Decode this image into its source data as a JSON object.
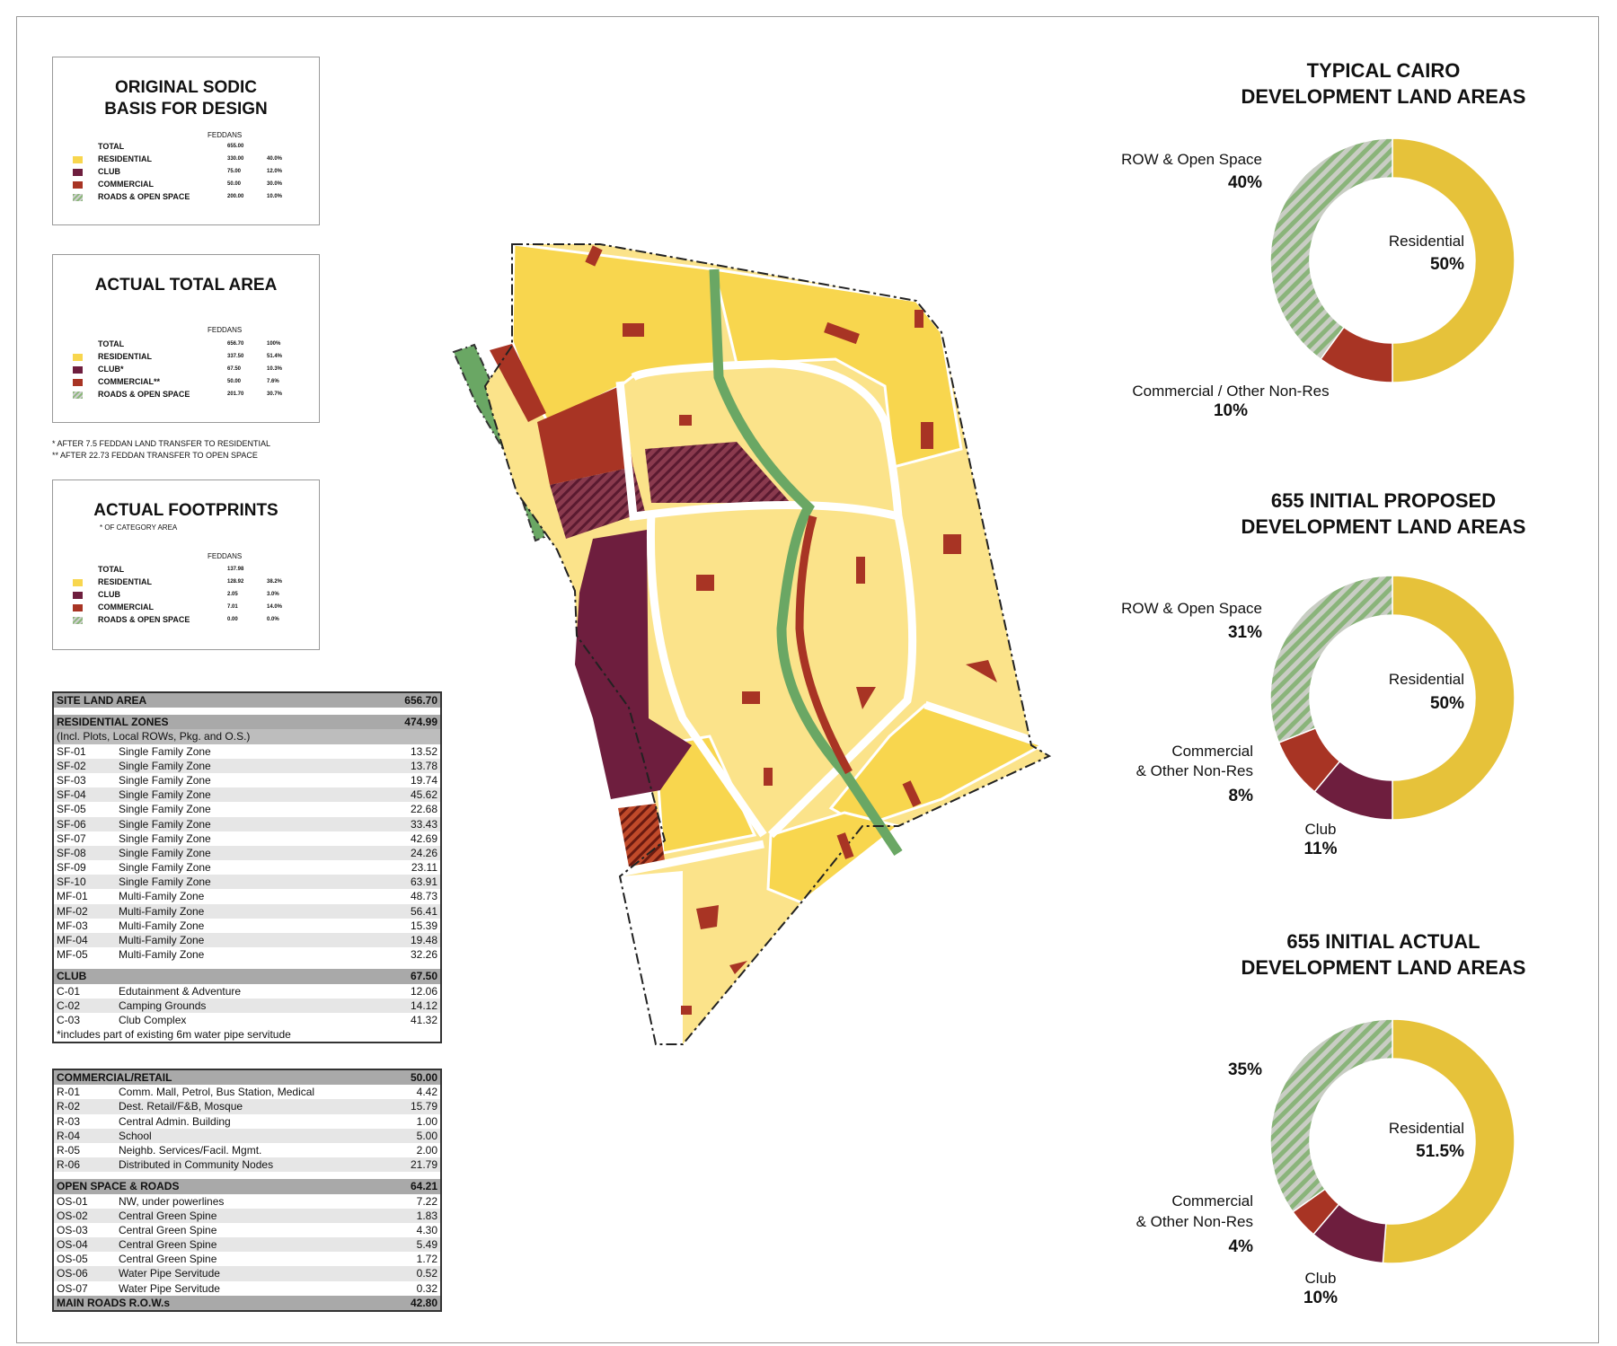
{
  "legend_boxes": {
    "original": {
      "title_line1": "ORIGINAL SODIC",
      "title_line2": "BASIS FOR DESIGN",
      "unit": "FEDDANS",
      "rows": [
        {
          "label": "TOTAL",
          "value": "655.00",
          "pct": ""
        },
        {
          "label": "RESIDENTIAL",
          "value": "330.00",
          "pct": "40.0%"
        },
        {
          "label": "CLUB",
          "value": "75.00",
          "pct": "12.0%"
        },
        {
          "label": "COMMERCIAL",
          "value": "50.00",
          "pct": "30.0%"
        },
        {
          "label": "ROADS & OPEN SPACE",
          "value": "200.00",
          "pct": "10.0%"
        }
      ]
    },
    "actual_total": {
      "title": "ACTUAL TOTAL AREA",
      "unit": "FEDDANS",
      "rows": [
        {
          "label": "TOTAL",
          "value": "656.70",
          "pct": "100%"
        },
        {
          "label": "RESIDENTIAL",
          "value": "337.50",
          "pct": "51.4%"
        },
        {
          "label": "CLUB*",
          "value": "67.50",
          "pct": "10.3%"
        },
        {
          "label": "COMMERCIAL**",
          "value": "50.00",
          "pct": "7.6%"
        },
        {
          "label": "ROADS & OPEN SPACE",
          "value": "201.70",
          "pct": "30.7%"
        }
      ],
      "note1": "* AFTER 7.5 FEDDAN LAND TRANSFER TO RESIDENTIAL",
      "note2": "** AFTER 22.73 FEDDAN TRANSFER TO OPEN SPACE"
    },
    "footprints": {
      "title": "ACTUAL FOOTPRINTS",
      "subtitle": "* OF CATEGORY AREA",
      "unit": "FEDDANS",
      "rows": [
        {
          "label": "TOTAL",
          "value": "137.98",
          "pct": ""
        },
        {
          "label": "RESIDENTIAL",
          "value": "128.92",
          "pct": "38.2%"
        },
        {
          "label": "CLUB",
          "value": "2.05",
          "pct": "3.0%"
        },
        {
          "label": "COMMERCIAL",
          "value": "7.01",
          "pct": "14.0%"
        },
        {
          "label": "ROADS & OPEN SPACE",
          "value": "0.00",
          "pct": "0.0%"
        }
      ]
    }
  },
  "colors": {
    "residential": "#f8d64e",
    "residential_light": "#fbe38a",
    "club": "#6e1e3e",
    "commercial": "#a83424",
    "green": "#6aa764",
    "donut_yellow": "#e6c23a",
    "donut_red": "#a83424",
    "donut_club": "#6e1e3e"
  },
  "table1": {
    "site": {
      "label": "SITE LAND AREA",
      "value": "656.70"
    },
    "res": {
      "label": "RESIDENTIAL ZONES",
      "value": "474.99",
      "note": "(Incl. Plots, Local ROWs, Pkg. and O.S.)"
    },
    "res_rows": [
      {
        "code": "SF-01",
        "name": "Single Family Zone",
        "value": "13.52"
      },
      {
        "code": "SF-02",
        "name": "Single Family Zone",
        "value": "13.78"
      },
      {
        "code": "SF-03",
        "name": "Single Family Zone",
        "value": "19.74"
      },
      {
        "code": "SF-04",
        "name": "Single Family Zone",
        "value": "45.62"
      },
      {
        "code": "SF-05",
        "name": "Single Family Zone",
        "value": "22.68"
      },
      {
        "code": "SF-06",
        "name": "Single Family Zone",
        "value": "33.43"
      },
      {
        "code": "SF-07",
        "name": "Single Family Zone",
        "value": "42.69"
      },
      {
        "code": "SF-08",
        "name": "Single Family Zone",
        "value": "24.26"
      },
      {
        "code": "SF-09",
        "name": "Single Family Zone",
        "value": "23.11"
      },
      {
        "code": "SF-10",
        "name": "Single Family Zone",
        "value": "63.91"
      },
      {
        "code": "MF-01",
        "name": "Multi-Family Zone",
        "value": "48.73"
      },
      {
        "code": "MF-02",
        "name": "Multi-Family Zone",
        "value": "56.41"
      },
      {
        "code": "MF-03",
        "name": "Multi-Family Zone",
        "value": "15.39"
      },
      {
        "code": "MF-04",
        "name": "Multi-Family Zone",
        "value": "19.48"
      },
      {
        "code": "MF-05",
        "name": "Multi-Family Zone",
        "value": "32.26"
      }
    ],
    "club": {
      "label": "CLUB",
      "value": "67.50"
    },
    "club_rows": [
      {
        "code": "C-01",
        "name": "Edutainment & Adventure",
        "value": "12.06"
      },
      {
        "code": "C-02",
        "name": "Camping Grounds",
        "value": "14.12"
      },
      {
        "code": "C-03",
        "name": "Club Complex",
        "value": "41.32"
      }
    ],
    "club_note": "*includes part of existing 6m water pipe servitude"
  },
  "table2": {
    "com": {
      "label": "COMMERCIAL/RETAIL",
      "value": "50.00"
    },
    "com_rows": [
      {
        "code": "R-01",
        "name": "Comm. Mall, Petrol, Bus Station, Medical",
        "value": "4.42"
      },
      {
        "code": "R-02",
        "name": "Dest. Retail/F&B, Mosque",
        "value": "15.79"
      },
      {
        "code": "R-03",
        "name": "Central Admin. Building",
        "value": "1.00"
      },
      {
        "code": "R-04",
        "name": "School",
        "value": "5.00"
      },
      {
        "code": "R-05",
        "name": "Neighb. Services/Facil. Mgmt.",
        "value": "2.00"
      },
      {
        "code": "R-06",
        "name": "Distributed in Community Nodes",
        "value": "21.79"
      }
    ],
    "os": {
      "label": "OPEN SPACE & ROADS",
      "value": "64.21"
    },
    "os_rows": [
      {
        "code": "OS-01",
        "name": "NW, under powerlines",
        "value": "7.22"
      },
      {
        "code": "OS-02",
        "name": "Central Green Spine",
        "value": "1.83"
      },
      {
        "code": "OS-03",
        "name": "Central Green Spine",
        "value": "4.30"
      },
      {
        "code": "OS-04",
        "name": "Central Green Spine",
        "value": "5.49"
      },
      {
        "code": "OS-05",
        "name": "Central Green Spine",
        "value": "1.72"
      },
      {
        "code": "OS-06",
        "name": "Water Pipe Servitude",
        "value": "0.52"
      },
      {
        "code": "OS-07",
        "name": "Water Pipe Servitude",
        "value": "0.32"
      }
    ],
    "roads": {
      "label": "MAIN ROADS R.O.W.s",
      "value": "42.80"
    }
  },
  "donuts": [
    {
      "title1": "TYPICAL CAIRO",
      "title2": "DEVELOPMENT LAND AREAS",
      "row_label": "ROW & Open Space",
      "row_pct": "40%",
      "res_label": "Residential",
      "res_pct": "50%",
      "com_label": "Commercial / Other Non-Res",
      "com_pct": "10%",
      "segments": [
        {
          "name": "Residential",
          "value": 50,
          "color": "#e6c23a"
        },
        {
          "name": "Commercial / Other Non-Res",
          "value": 10,
          "color": "#a83424"
        },
        {
          "name": "ROW & Open Space",
          "value": 40,
          "color": "hatch"
        }
      ]
    },
    {
      "title1": "655 INITIAL PROPOSED",
      "title2": "DEVELOPMENT LAND AREAS",
      "row_label": "ROW & Open Space",
      "row_pct": "31%",
      "res_label": "Residential",
      "res_pct": "50%",
      "com_label1": "Commercial",
      "com_label2": "& Other Non-Res",
      "com_pct": "8%",
      "club_label": "Club",
      "club_pct": "11%",
      "segments": [
        {
          "name": "Residential",
          "value": 50,
          "color": "#e6c23a"
        },
        {
          "name": "Club",
          "value": 11,
          "color": "#6e1e3e"
        },
        {
          "name": "Commercial & Other Non-Res",
          "value": 8,
          "color": "#a83424"
        },
        {
          "name": "ROW & Open Space",
          "value": 31,
          "color": "hatch"
        }
      ]
    },
    {
      "title1": "655 INITIAL ACTUAL",
      "title2": "DEVELOPMENT LAND AREAS",
      "row_pct": "35%",
      "res_label": "Residential",
      "res_pct": "51.5%",
      "com_label1": "Commercial",
      "com_label2": "& Other Non-Res",
      "com_pct": "4%",
      "club_label": "Club",
      "club_pct": "10%",
      "segments": [
        {
          "name": "Residential",
          "value": 51.5,
          "color": "#e6c23a"
        },
        {
          "name": "Club",
          "value": 10,
          "color": "#6e1e3e"
        },
        {
          "name": "Commercial & Other Non-Res",
          "value": 4,
          "color": "#a83424"
        },
        {
          "name": "ROW & Open Space",
          "value": 35,
          "color": "hatch"
        }
      ]
    }
  ]
}
